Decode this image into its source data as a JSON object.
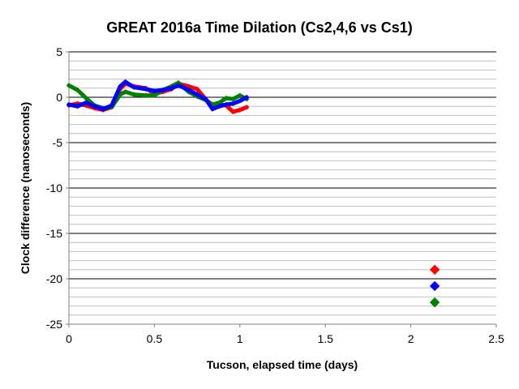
{
  "chart_data": {
    "type": "scatter",
    "title": "GREAT 2016a Time Dilation (Cs2,4,6 vs Cs1)",
    "xlabel": "Tucson, elapsed time (days)",
    "ylabel": "Clock difference (nanoseconds)",
    "xlim": [
      0,
      2.5
    ],
    "ylim": [
      -25,
      5
    ],
    "x_ticks": [
      0,
      0.5,
      1,
      1.5,
      2,
      2.5
    ],
    "x_tick_labels": [
      "0",
      "0.5",
      "1",
      "1.5",
      "2",
      "2.5"
    ],
    "y_ticks": [
      5,
      0,
      -5,
      -10,
      -15,
      -20,
      -25
    ],
    "y_tick_labels": [
      "5",
      "0",
      "-5",
      "-10",
      "-15",
      "-20",
      "-25"
    ],
    "grid": {
      "major_y_step": 5,
      "minor_y_step": 1
    },
    "legend": "none",
    "series": [
      {
        "color": "#ff0000",
        "x": [
          0,
          0.05,
          0.1,
          0.15,
          0.2,
          0.25,
          0.3,
          0.33,
          0.38,
          0.45,
          0.5,
          0.55,
          0.6,
          0.64,
          0.7,
          0.75,
          0.8,
          0.84,
          0.88,
          0.92,
          0.96,
          1.0,
          1.04,
          2.14
        ],
        "y": [
          -0.9,
          -0.7,
          -0.9,
          -1.2,
          -1.4,
          -1.1,
          0.9,
          1.5,
          1.2,
          1.0,
          0.4,
          0.6,
          0.9,
          1.5,
          1.2,
          0.9,
          -0.2,
          -1.1,
          -0.8,
          -0.9,
          -1.6,
          -1.4,
          -1.1,
          -19
        ]
      },
      {
        "color": "#008000",
        "x": [
          0,
          0.05,
          0.1,
          0.15,
          0.2,
          0.25,
          0.3,
          0.33,
          0.38,
          0.45,
          0.5,
          0.55,
          0.6,
          0.64,
          0.7,
          0.75,
          0.8,
          0.84,
          0.88,
          0.92,
          0.96,
          1.0,
          1.04,
          2.14
        ],
        "y": [
          1.3,
          0.8,
          -0.1,
          -0.9,
          -1.2,
          -1.1,
          0.3,
          0.6,
          0.3,
          0.2,
          0.2,
          0.8,
          1.2,
          1.6,
          0.6,
          0.1,
          -0.3,
          -0.8,
          -0.6,
          -0.1,
          -0.2,
          0.2,
          -0.2,
          -22.6
        ]
      },
      {
        "color": "#0000ff",
        "x": [
          0,
          0.05,
          0.1,
          0.15,
          0.2,
          0.25,
          0.3,
          0.33,
          0.38,
          0.45,
          0.5,
          0.55,
          0.6,
          0.64,
          0.7,
          0.75,
          0.8,
          0.84,
          0.88,
          0.92,
          0.96,
          1.0,
          1.04,
          2.14
        ],
        "y": [
          -0.8,
          -1.0,
          -0.6,
          -1.0,
          -1.3,
          -0.9,
          1.2,
          1.7,
          1.1,
          0.9,
          0.7,
          0.8,
          1.0,
          1.3,
          0.8,
          0.3,
          -0.2,
          -1.3,
          -1.0,
          -0.8,
          -0.7,
          -0.4,
          0.0,
          -20.8
        ]
      }
    ]
  }
}
